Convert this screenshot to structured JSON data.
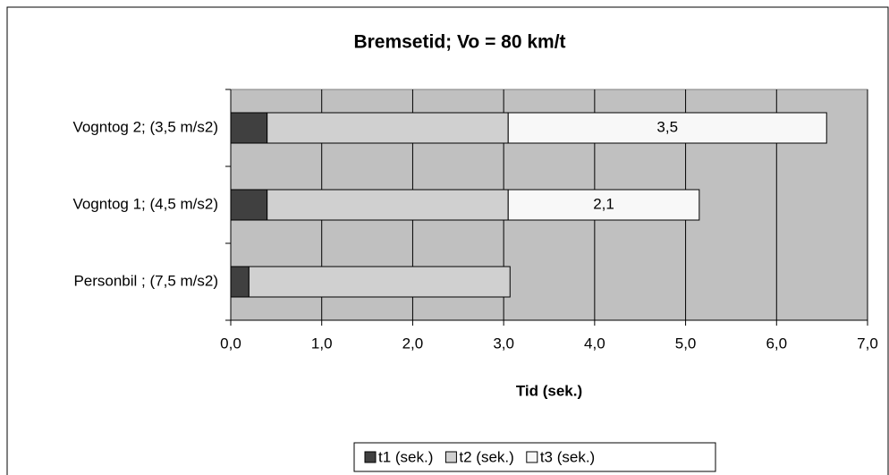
{
  "chart_data": {
    "type": "bar",
    "orientation": "horizontal",
    "stacked": true,
    "title": "Bremsetid; Vo = 80 km/t",
    "x_label": "Tid (sek.)",
    "categories": [
      "Vogntog 2; (3,5 m/s2)",
      "Vogntog 1; (4,5 m/s2)",
      "Personbil ; (7,5 m/s2)"
    ],
    "series": [
      {
        "name": "t1 (sek.)",
        "color": "#404040",
        "values": [
          0.4,
          0.4,
          0.2
        ]
      },
      {
        "name": "t2 (sek.)",
        "color": "#d0d0d0",
        "values": [
          2.65,
          2.65,
          2.87
        ]
      },
      {
        "name": "t3 (sek.)",
        "color": "#f8f8f8",
        "values": [
          3.5,
          2.1,
          null
        ],
        "value_labels": [
          "3,5",
          "2,1",
          null
        ]
      }
    ],
    "xlim": [
      0,
      7
    ],
    "xticks": [
      {
        "value": 0,
        "label": "0,0"
      },
      {
        "value": 1,
        "label": "1,0"
      },
      {
        "value": 2,
        "label": "2,0"
      },
      {
        "value": 3,
        "label": "3,0"
      },
      {
        "value": 4,
        "label": "4,0"
      },
      {
        "value": 5,
        "label": "5,0"
      },
      {
        "value": 6,
        "label": "6,0"
      },
      {
        "value": 7,
        "label": "7,0"
      }
    ],
    "grid": true,
    "plot_background": "#c0c0c0",
    "legend": "bottom"
  }
}
